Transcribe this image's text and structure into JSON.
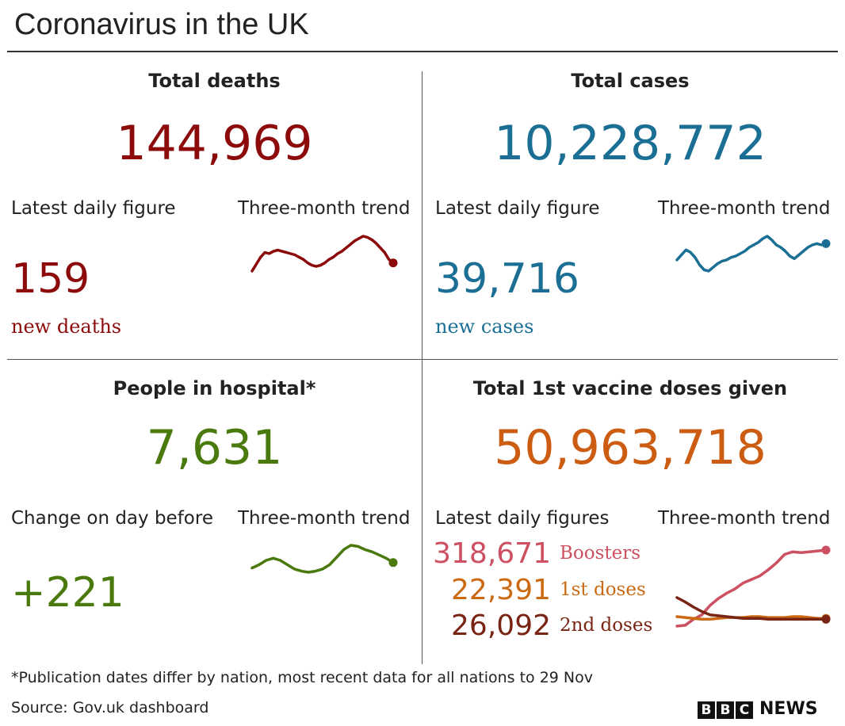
{
  "title": "Coronavirus in the UK",
  "colors": {
    "deaths": "#8c0a0a",
    "cases": "#1b6f94",
    "hospital": "#4a7a0e",
    "vaccine": "#cc5c11",
    "boosters": "#cc5061",
    "first_doses": "#cc6a14",
    "second_doses": "#7a2514"
  },
  "deaths": {
    "heading": "Total deaths",
    "total": "144,969",
    "latest_label": "Latest daily figure",
    "trend_label": "Three-month trend",
    "daily": "159",
    "daily_caption": "new deaths"
  },
  "cases": {
    "heading": "Total cases",
    "total": "10,228,772",
    "latest_label": "Latest daily figure",
    "trend_label": "Three-month trend",
    "daily": "39,716",
    "daily_caption": "new cases"
  },
  "hospital": {
    "heading": "People in hospital*",
    "total": "7,631",
    "latest_label": "Change on day before",
    "trend_label": "Three-month trend",
    "daily": "+221"
  },
  "vaccine": {
    "heading": "Total 1st vaccine doses given",
    "total": "50,963,718",
    "latest_label": "Latest daily figures",
    "trend_label": "Three-month trend",
    "boosters_value": "318,671",
    "boosters_label": "Boosters",
    "first_value": "22,391",
    "first_label": "1st doses",
    "second_value": "26,092",
    "second_label": "2nd doses"
  },
  "footnote": "*Publication dates differ by nation, most recent data for all nations to 29 Nov",
  "source": "Source: Gov.uk dashboard",
  "logo": {
    "letters": [
      "B",
      "B",
      "C"
    ],
    "news": "NEWS"
  },
  "chart_data": [
    {
      "type": "line",
      "series": [
        {
          "values": [
            40,
            46,
            52,
            56,
            55,
            57,
            58,
            57,
            56,
            55,
            54,
            52,
            50,
            47,
            45,
            44,
            45,
            47,
            50,
            52,
            55,
            57,
            60,
            63,
            66,
            68,
            70,
            69,
            67,
            64,
            60,
            56,
            50,
            47
          ]
        }
      ]
    },
    {
      "type": "line",
      "series": [
        {
          "values": [
            50,
            54,
            58,
            56,
            52,
            46,
            42,
            41,
            44,
            47,
            49,
            50,
            52,
            53,
            55,
            57,
            60,
            62,
            64,
            67,
            69,
            66,
            62,
            60,
            57,
            53,
            51,
            54,
            57,
            60,
            62,
            63,
            62,
            63
          ]
        }
      ]
    },
    {
      "type": "line",
      "series": [
        {
          "values": [
            45,
            48,
            52,
            54,
            52,
            48,
            44,
            42,
            41,
            42,
            44,
            48,
            55,
            62,
            66,
            65,
            62,
            60,
            57,
            54,
            50
          ]
        }
      ]
    },
    {
      "type": "line",
      "series": [
        {
          "name": "Boosters",
          "values": [
            2,
            3,
            10,
            15,
            26,
            34,
            40,
            45,
            52,
            56,
            60,
            67,
            75,
            85,
            88,
            87,
            88,
            89,
            90
          ]
        },
        {
          "name": "1st doses",
          "values": [
            13,
            12,
            11,
            10,
            10,
            11,
            12,
            12,
            12,
            13,
            13,
            12,
            12,
            12,
            13,
            13,
            12,
            11,
            11
          ]
        },
        {
          "name": "2nd doses",
          "values": [
            35,
            30,
            24,
            19,
            15,
            14,
            13,
            12,
            11,
            11,
            11,
            10,
            10,
            10,
            10,
            10,
            10,
            10,
            10
          ]
        }
      ]
    }
  ]
}
